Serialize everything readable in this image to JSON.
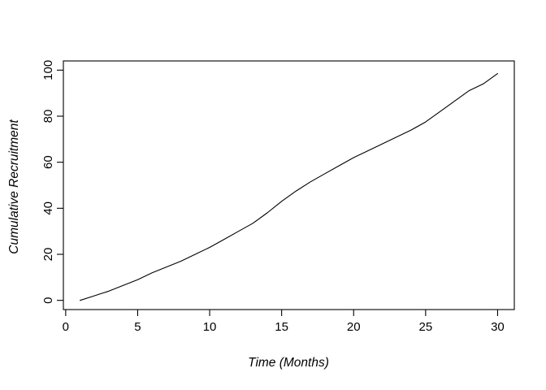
{
  "chart_data": {
    "type": "line",
    "title": "",
    "xlabel": "Time (Months)",
    "ylabel": "Cumulative Recruitment",
    "x": [
      1,
      2,
      3,
      4,
      5,
      6,
      7,
      8,
      9,
      10,
      11,
      12,
      13,
      14,
      15,
      16,
      17,
      18,
      19,
      20,
      21,
      22,
      23,
      24,
      25,
      26,
      27,
      28,
      29,
      30
    ],
    "series": [
      {
        "name": "cumulative-recruitment",
        "color": "#000000",
        "values": [
          0,
          2,
          4,
          6.5,
          9,
          12,
          14.5,
          17,
          20,
          23,
          26.5,
          30,
          33.5,
          38,
          43,
          47.5,
          51.5,
          55,
          58.5,
          62,
          65,
          68,
          71,
          74,
          77.5,
          82,
          86.5,
          91,
          94,
          98.5
        ]
      }
    ],
    "xlim": [
      1,
      30
    ],
    "ylim": [
      0,
      100
    ],
    "x_ticks": [
      0,
      5,
      10,
      15,
      20,
      25,
      30
    ],
    "y_ticks": [
      0,
      20,
      40,
      60,
      80,
      100
    ],
    "grid": false,
    "legend_position": "none",
    "box": true,
    "axis_color": "#000000",
    "background": "#ffffff"
  }
}
